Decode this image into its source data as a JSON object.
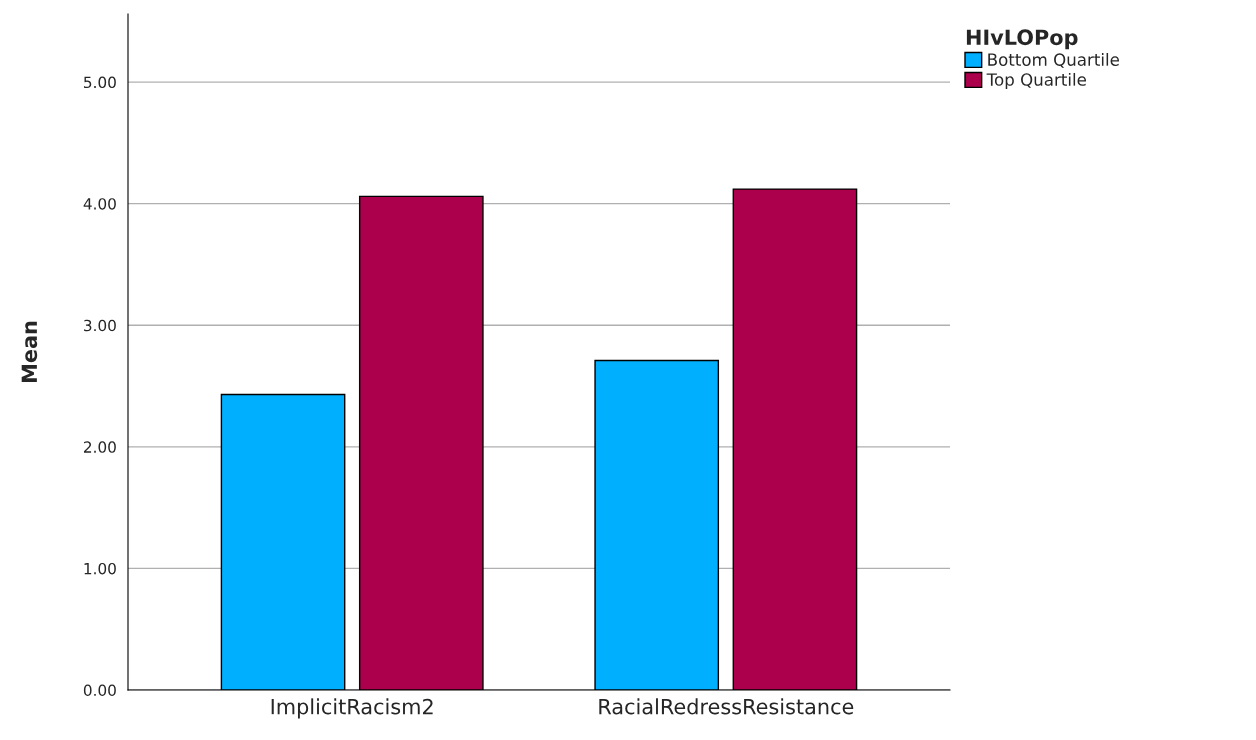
{
  "chart_data": {
    "type": "bar",
    "categories": [
      "ImplicitRacism2",
      "RacialRedressResistance"
    ],
    "series": [
      {
        "name": "Bottom Quartile",
        "color": "#00b0ff",
        "values": [
          2.43,
          2.71
        ]
      },
      {
        "name": "Top Quartile",
        "color": "#ac004c",
        "values": [
          4.06,
          4.12
        ]
      }
    ],
    "ylabel": "Mean",
    "legend_title": "HIvLOPop",
    "legend": "top right",
    "ylim": [
      0,
      5.56
    ],
    "yticks": [
      {
        "value": 0,
        "label": "0.00"
      },
      {
        "value": 1,
        "label": "1.00"
      },
      {
        "value": 2,
        "label": "2.00"
      },
      {
        "value": 3,
        "label": "3.00"
      },
      {
        "value": 4,
        "label": "4.00"
      },
      {
        "value": 5,
        "label": "5.00"
      }
    ],
    "grid": "y"
  }
}
